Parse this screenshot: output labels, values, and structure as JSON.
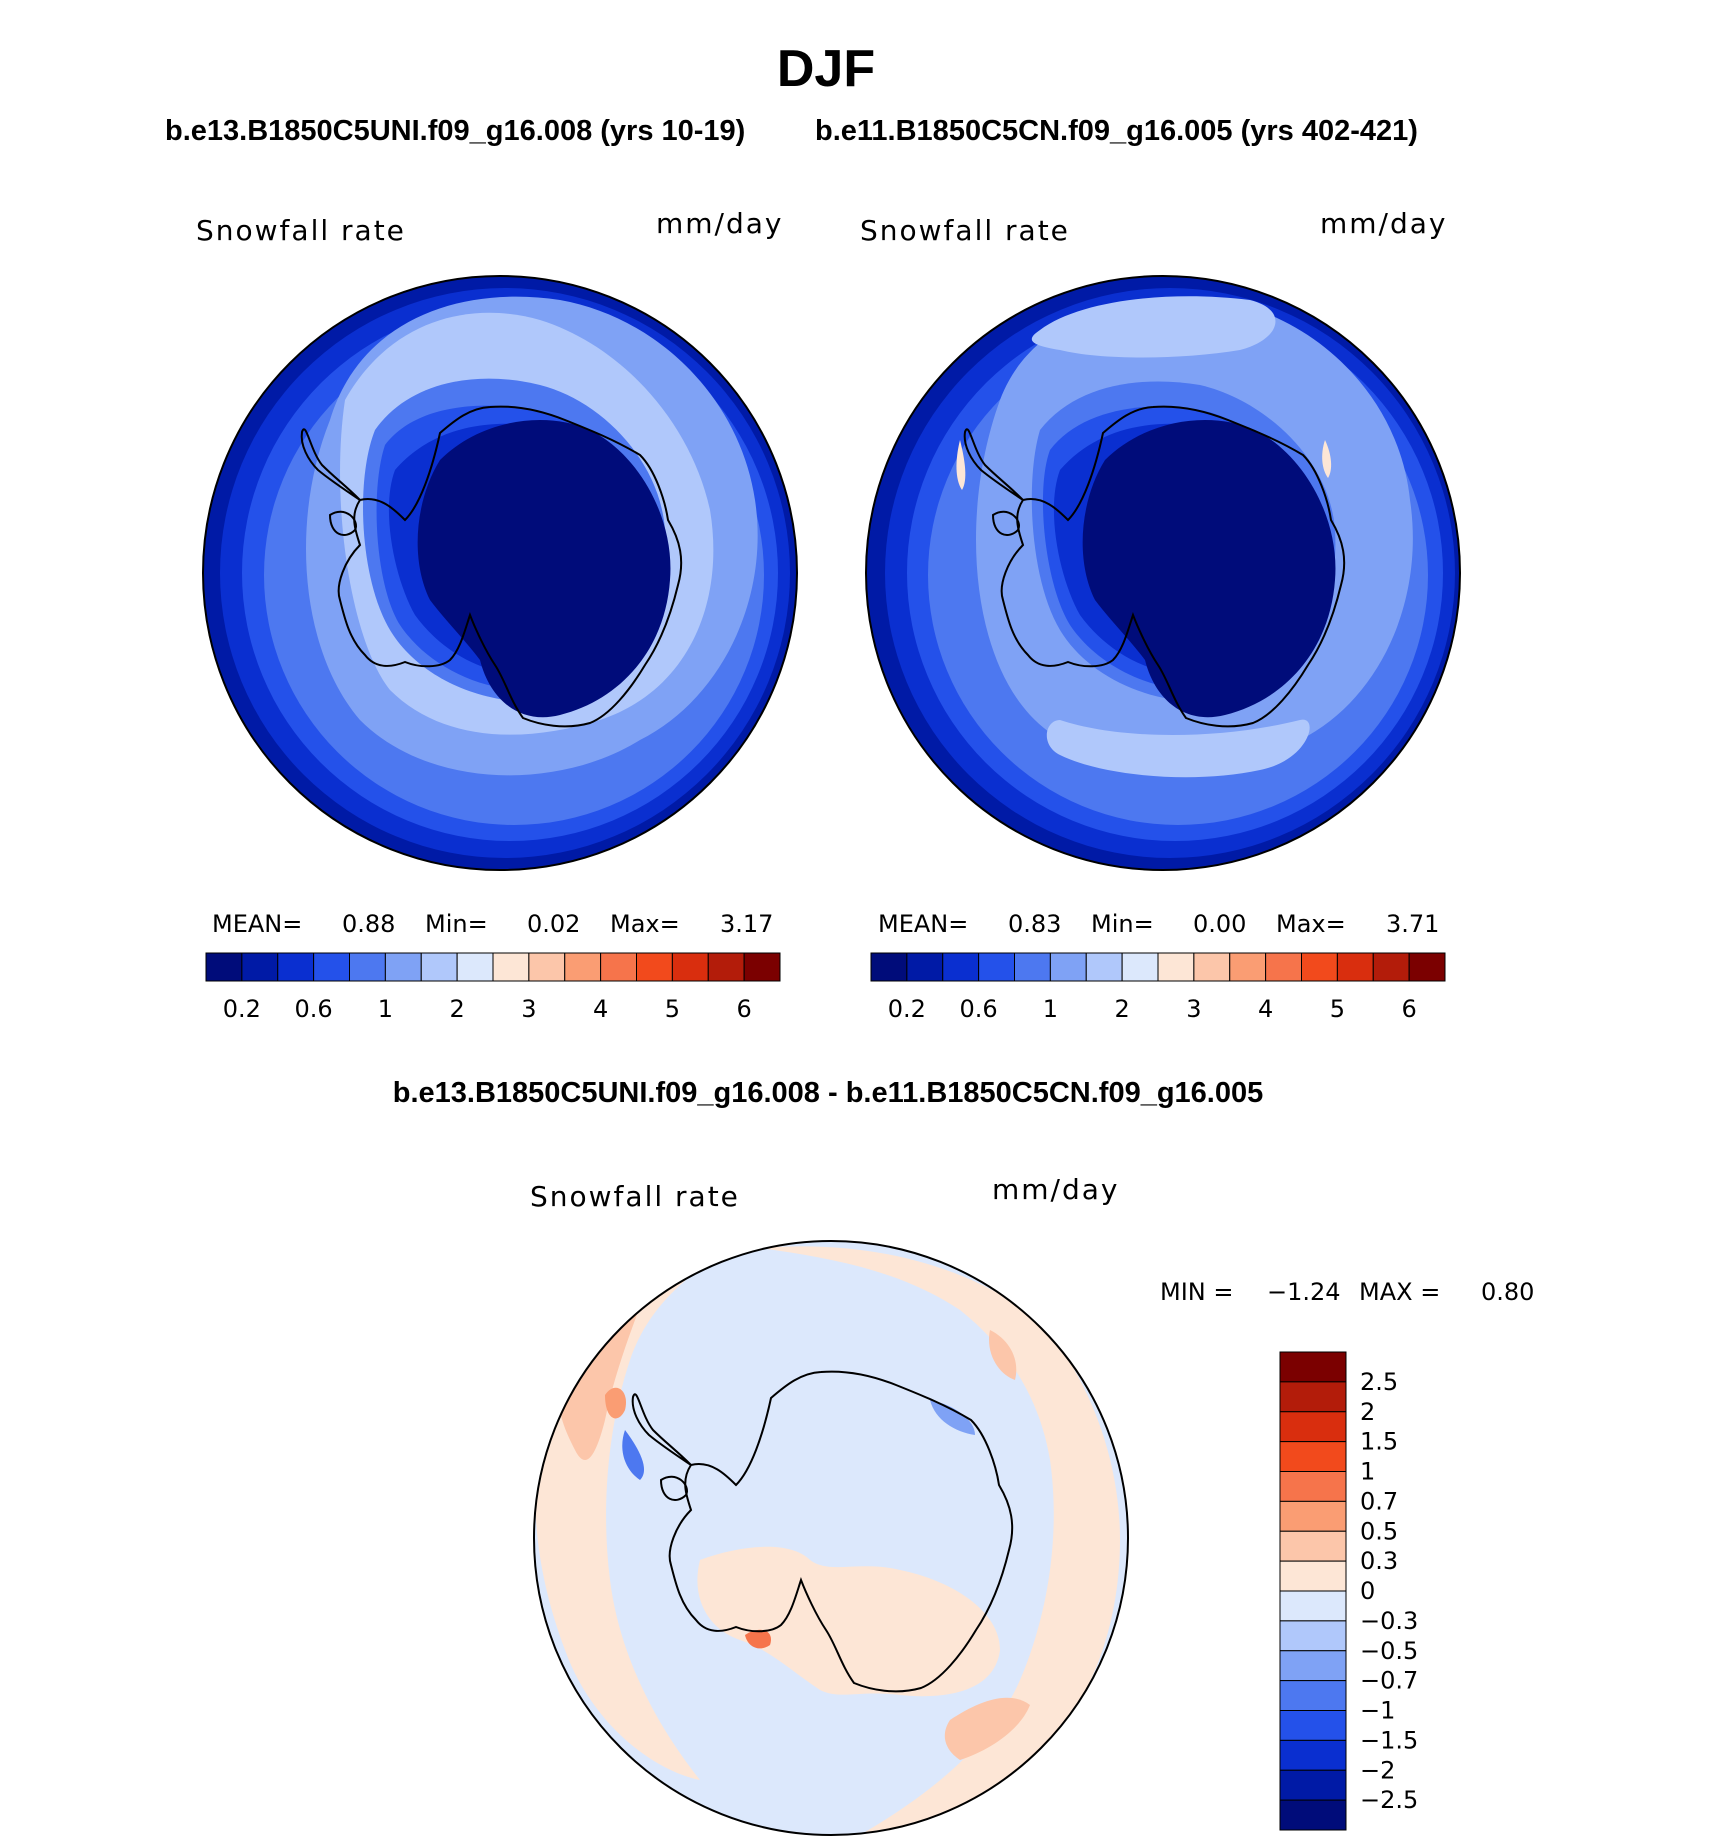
{
  "title": "DJF",
  "panels": [
    {
      "id": "case1",
      "title": "b.e13.B1850C5UNI.f09_g16.008 (yrs 10-19)",
      "variable": "Snowfall rate",
      "units": "mm/day",
      "stats": {
        "mean_label": "MEAN=",
        "mean": "0.88",
        "min_label": "Min=",
        "min": "0.02",
        "max_label": "Max=",
        "max": "3.17"
      },
      "levels": [
        "0.2",
        "0.6",
        "1",
        "2",
        "3",
        "4",
        "5",
        "6"
      ]
    },
    {
      "id": "case2",
      "title": "b.e11.B1850C5CN.f09_g16.005 (yrs 402-421)",
      "variable": "Snowfall rate",
      "units": "mm/day",
      "stats": {
        "mean_label": "MEAN=",
        "mean": "0.83",
        "min_label": "Min=",
        "min": "0.00",
        "max_label": "Max=",
        "max": "3.71"
      },
      "levels": [
        "0.2",
        "0.6",
        "1",
        "2",
        "3",
        "4",
        "5",
        "6"
      ]
    }
  ],
  "diff": {
    "title": "b.e13.B1850C5UNI.f09_g16.008 - b.e11.B1850C5CN.f09_g16.005",
    "variable": "Snowfall rate",
    "units": "mm/day",
    "min_label": "MIN =",
    "min": "−1.24",
    "max_label": "MAX =",
    "max": "0.80",
    "levels": [
      "2.5",
      "2",
      "1.5",
      "1",
      "0.7",
      "0.5",
      "0.3",
      "0",
      "−0.3",
      "−0.5",
      "−0.7",
      "−1",
      "−1.5",
      "−2",
      "−2.5"
    ]
  },
  "colors": {
    "field_scale": [
      "#000c7a",
      "#001aa6",
      "#0a2fd0",
      "#2451ea",
      "#4d78f0",
      "#7fa2f5",
      "#b0c8fb",
      "#dce8fc",
      "#fde6d6",
      "#fcc6aa",
      "#fa9d73",
      "#f6744b",
      "#f24a1c",
      "#d92e0e",
      "#b31c0a",
      "#7b0000"
    ],
    "diff_scale_top_to_bottom": [
      "#7b0000",
      "#b31c0a",
      "#d92e0e",
      "#f24a1c",
      "#f6744b",
      "#fa9d73",
      "#fcc6aa",
      "#fde6d6",
      "#dce8fc",
      "#b0c8fb",
      "#7fa2f5",
      "#4d78f0",
      "#2451ea",
      "#0a2fd0",
      "#001aa6",
      "#000c7a"
    ]
  }
}
